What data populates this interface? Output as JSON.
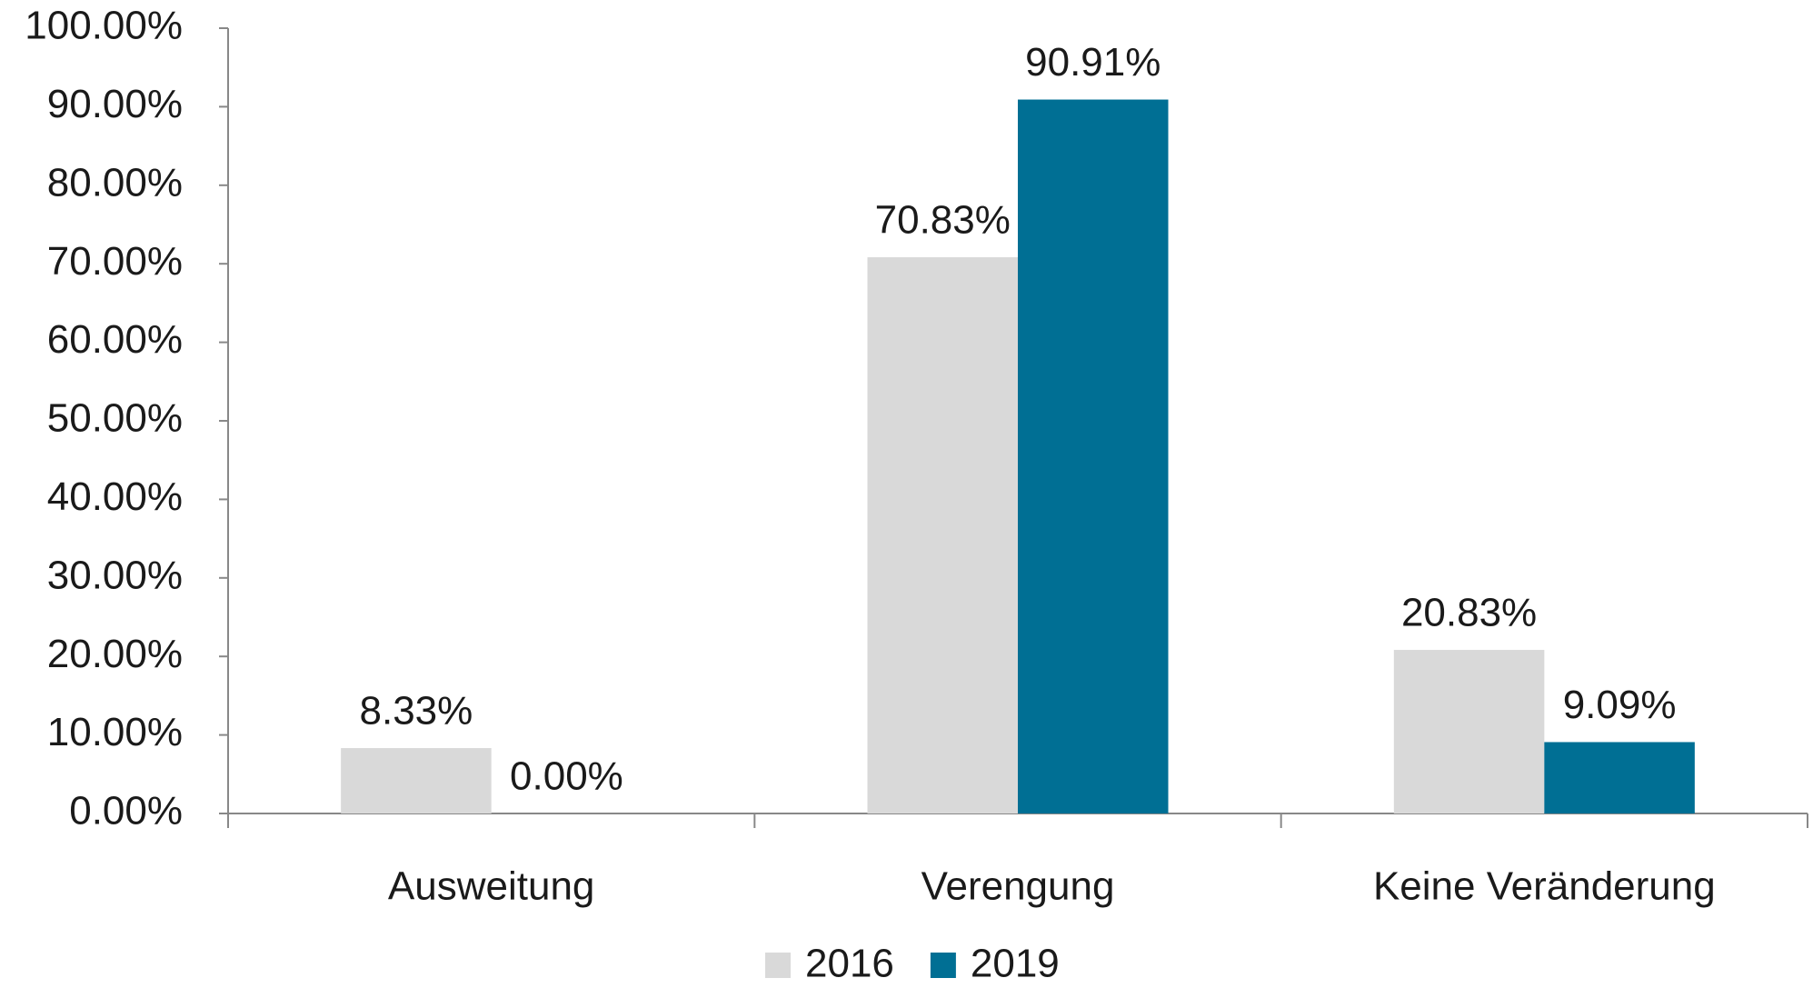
{
  "chart_data": {
    "type": "bar",
    "categories": [
      "Ausweitung",
      "Verengung",
      "Keine Veränderung"
    ],
    "series": [
      {
        "name": "2016",
        "color": "#d9d9d9",
        "values": [
          8.33,
          70.83,
          20.83
        ],
        "value_labels": [
          "8.33%",
          "70.83%",
          "20.83%"
        ]
      },
      {
        "name": "2019",
        "color": "#006f94",
        "values": [
          0,
          90.91,
          9.09
        ],
        "value_labels": [
          "0.00%",
          "90.91%",
          "9.09%"
        ]
      }
    ],
    "ylim": [
      0,
      100
    ],
    "yticks": [
      {
        "value": 0,
        "label": "0.00%"
      },
      {
        "value": 10,
        "label": "10.00%"
      },
      {
        "value": 20,
        "label": "20.00%"
      },
      {
        "value": 30,
        "label": "30.00%"
      },
      {
        "value": 40,
        "label": "40.00%"
      },
      {
        "value": 50,
        "label": "50.00%"
      },
      {
        "value": 60,
        "label": "60.00%"
      },
      {
        "value": 70,
        "label": "70.00%"
      },
      {
        "value": 80,
        "label": "80.00%"
      },
      {
        "value": 90,
        "label": "90.00%"
      },
      {
        "value": 100,
        "label": "100.00%"
      }
    ],
    "grid": false,
    "legend": "bottom"
  }
}
